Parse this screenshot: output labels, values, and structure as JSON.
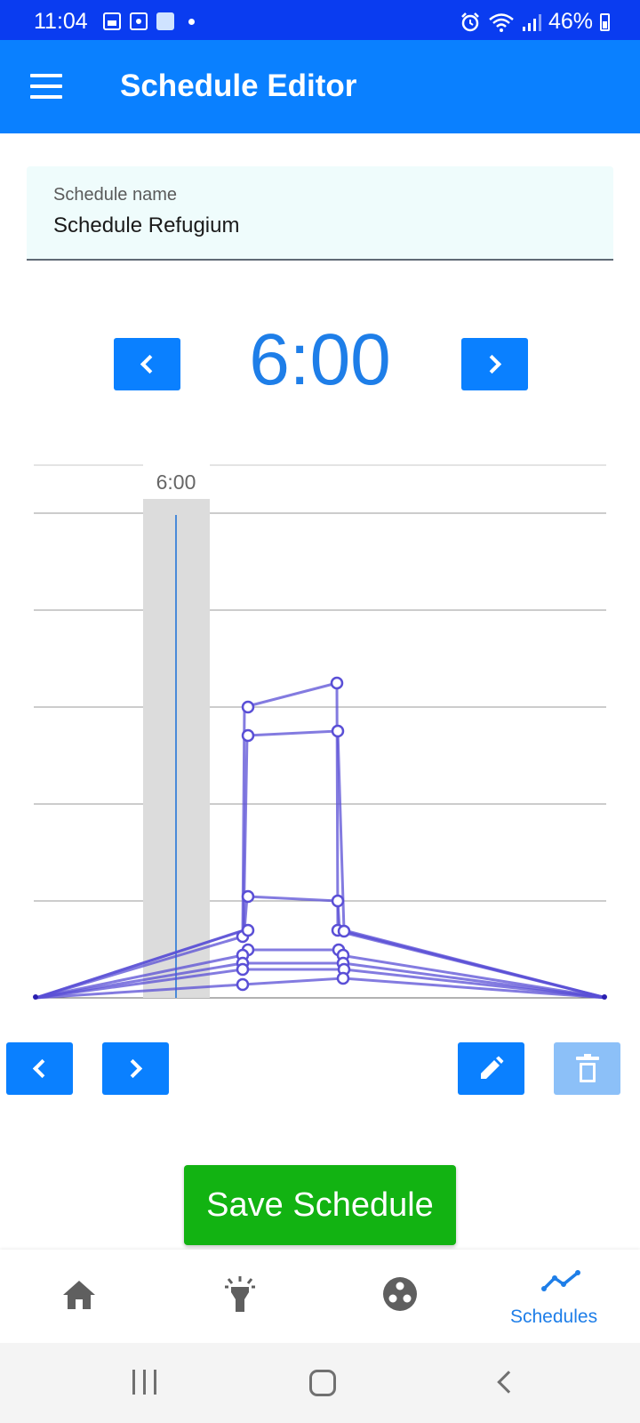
{
  "status_bar": {
    "time": "11:04",
    "battery": "46%",
    "icons": [
      "gallery-icon",
      "screen-record-icon",
      "maps-icon",
      "notification-dot",
      "alarm-icon",
      "wifi-icon",
      "signal-icon",
      "battery-icon"
    ]
  },
  "app_bar": {
    "title": "Schedule Editor",
    "menu_icon": "hamburger-menu-icon"
  },
  "schedule_name": {
    "label": "Schedule name",
    "value": "Schedule Refugium"
  },
  "time_nav": {
    "current_time": "6:00",
    "prev_icon": "chevron-left-icon",
    "next_icon": "chevron-right-icon"
  },
  "chart": {
    "cursor_label": "6:00",
    "series_color": "#5a4fd6",
    "cursor_color": "#1a6fd8",
    "cursor_band_color": "#dcdcdc"
  },
  "point_nav": {
    "prev_icon": "chevron-left-icon",
    "next_icon": "chevron-right-icon",
    "edit_icon": "pencil-icon",
    "delete_icon": "trash-icon",
    "delete_enabled": false
  },
  "save_button": {
    "label": "Save Schedule",
    "color": "#12b312"
  },
  "bottom_nav": {
    "items": [
      {
        "icon": "home-icon",
        "label": ""
      },
      {
        "icon": "light-icon",
        "label": ""
      },
      {
        "icon": "channels-icon",
        "label": ""
      },
      {
        "icon": "schedule-chart-icon",
        "label": "Schedules",
        "active": true
      }
    ],
    "active_color": "#1e7ee8"
  },
  "system_nav": {
    "icons": [
      "recents-icon",
      "home-icon",
      "back-icon"
    ]
  }
}
